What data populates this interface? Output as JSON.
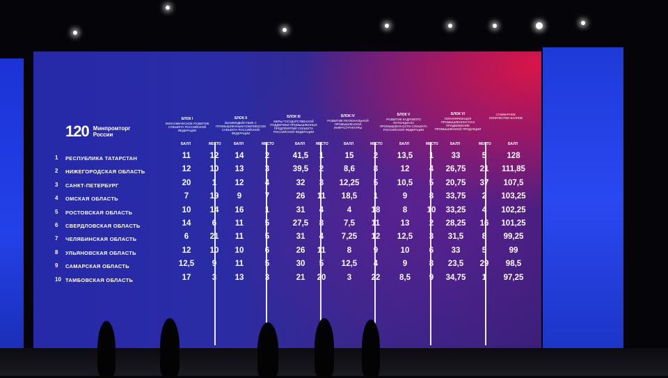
{
  "logo": {
    "number": "120",
    "line1": "Минпромторг",
    "line2": "России"
  },
  "blocks": [
    {
      "title": "БЛОК I",
      "desc": "Экономическое развитие субъекта Российской Федерации"
    },
    {
      "title": "БЛОК II",
      "desc": "Взаимодействие с промышленным комплексом субъекта Российской Федерации"
    },
    {
      "title": "БЛОК III",
      "desc": "Меры государственной поддержки промышленных предприятий субъекта Российской Федерации"
    },
    {
      "title": "БЛОК IV",
      "desc": "Развитие региональной промышленной инфраструктуры"
    },
    {
      "title": "БЛОК V",
      "desc": "Развитие кадрового потенциала промышленности субъекта Российской Федерации"
    },
    {
      "title": "БЛОК VI",
      "desc": "Популяризация промышленности и продвижение промышленной продукции"
    },
    {
      "title": "",
      "desc": "Суммарное количество баллов"
    }
  ],
  "labels": {
    "score": "БАЛЛ",
    "place": "МЕСТО"
  },
  "rows": [
    {
      "rank": "1",
      "region": "Республика Татарстан",
      "values": [
        "11",
        "12",
        "14",
        "2",
        "41,5",
        "1",
        "15",
        "2",
        "13,5",
        "1",
        "33",
        "5",
        "128"
      ]
    },
    {
      "rank": "2",
      "region": "Нижегородская область",
      "values": [
        "12",
        "10",
        "13",
        "3",
        "39,5",
        "2",
        "8,6",
        "8",
        "12",
        "4",
        "26,75",
        "21",
        "111,85"
      ]
    },
    {
      "rank": "3",
      "region": "Санкт-Петербург",
      "values": [
        "20",
        "1",
        "12",
        "4",
        "32",
        "3",
        "12,25",
        "5",
        "10,5",
        "5",
        "20,75",
        "37",
        "107,5"
      ]
    },
    {
      "rank": "4",
      "region": "Омская область",
      "values": [
        "7",
        "19",
        "9",
        "7",
        "26",
        "11",
        "18,5",
        "1",
        "9",
        "8",
        "33,75",
        "2",
        "103,25"
      ]
    },
    {
      "rank": "5",
      "region": "Ростовская область",
      "values": [
        "10",
        "14",
        "16",
        "1",
        "31",
        "4",
        "4",
        "18",
        "8",
        "10",
        "33,25",
        "4",
        "102,25"
      ]
    },
    {
      "rank": "6",
      "region": "Свердловская область",
      "values": [
        "14",
        "6",
        "11",
        "5",
        "27,5",
        "8",
        "7,5",
        "11",
        "13",
        "2",
        "28,25",
        "16",
        "101,25"
      ]
    },
    {
      "rank": "7",
      "region": "Челябинская область",
      "values": [
        "6",
        "21",
        "11",
        "5",
        "31",
        "4",
        "7,25",
        "12",
        "12,5",
        "3",
        "31,5",
        "8",
        "99,25"
      ]
    },
    {
      "rank": "8",
      "region": "Ульяновская область",
      "values": [
        "12",
        "10",
        "10",
        "6",
        "26",
        "11",
        "8",
        "9",
        "10",
        "6",
        "33",
        "5",
        "99"
      ]
    },
    {
      "rank": "9",
      "region": "Самарская область",
      "values": [
        "12,5",
        "9",
        "11",
        "5",
        "30",
        "5",
        "12,5",
        "4",
        "9",
        "8",
        "23,5",
        "29",
        "98,5"
      ]
    },
    {
      "rank": "10",
      "region": "Тамбовская область",
      "values": [
        "17",
        "3",
        "13",
        "3",
        "21",
        "20",
        "3",
        "22",
        "8,5",
        "9",
        "34,75",
        "1",
        "97,25"
      ]
    }
  ]
}
